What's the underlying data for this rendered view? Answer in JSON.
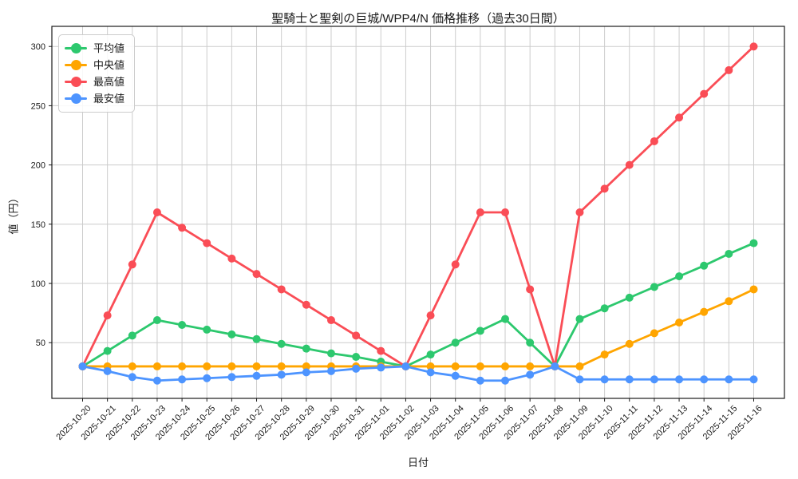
{
  "chart_data": {
    "type": "line",
    "title": "聖騎士と聖剣の巨城/WPP4/N 価格推移（過去30日間）",
    "xlabel": "日付",
    "ylabel": "値（円）",
    "grid": true,
    "legend_position": "upper left",
    "ylim": [
      3,
      317
    ],
    "yticks": [
      50,
      100,
      150,
      200,
      250,
      300
    ],
    "x": [
      "2025-10-20",
      "2025-10-21",
      "2025-10-22",
      "2025-10-23",
      "2025-10-24",
      "2025-10-25",
      "2025-10-26",
      "2025-10-27",
      "2025-10-28",
      "2025-10-29",
      "2025-10-30",
      "2025-10-31",
      "2025-11-01",
      "2025-11-02",
      "2025-11-03",
      "2025-11-04",
      "2025-11-05",
      "2025-11-06",
      "2025-11-07",
      "2025-11-08",
      "2025-11-09",
      "2025-11-10",
      "2025-11-11",
      "2025-11-12",
      "2025-11-13",
      "2025-11-14",
      "2025-11-15",
      "2025-11-16"
    ],
    "series": [
      {
        "key": "avg",
        "name": "平均値",
        "color": "#2dc86e",
        "values": [
          30,
          43,
          56,
          69,
          65,
          61,
          57,
          53,
          49,
          45,
          41,
          38,
          34,
          30,
          40,
          50,
          60,
          70,
          50,
          30,
          70,
          79,
          88,
          97,
          106,
          115,
          125,
          134
        ]
      },
      {
        "key": "median",
        "name": "中央値",
        "color": "#ffa500",
        "values": [
          30,
          30,
          30,
          30,
          30,
          30,
          30,
          30,
          30,
          30,
          30,
          30,
          30,
          30,
          30,
          30,
          30,
          30,
          30,
          30,
          30,
          40,
          49,
          58,
          67,
          76,
          85,
          95
        ]
      },
      {
        "key": "max",
        "name": "最高値",
        "color": "#fa4d56",
        "values": [
          30,
          73,
          116,
          160,
          147,
          134,
          121,
          108,
          95,
          82,
          69,
          56,
          43,
          30,
          73,
          116,
          160,
          160,
          95,
          30,
          160,
          180,
          200,
          220,
          240,
          260,
          280,
          300
        ]
      },
      {
        "key": "min",
        "name": "最安値",
        "color": "#4d94ff",
        "values": [
          30,
          26,
          21,
          18,
          19,
          20,
          21,
          22,
          23,
          25,
          26,
          28,
          29,
          30,
          25,
          22,
          18,
          18,
          23,
          30,
          19,
          19,
          19,
          19,
          19,
          19,
          19,
          19
        ]
      }
    ],
    "axis_colors": {
      "grid": "#cccccc",
      "spine": "#1a1a1a",
      "tick_label": "#1a1a1a"
    }
  }
}
